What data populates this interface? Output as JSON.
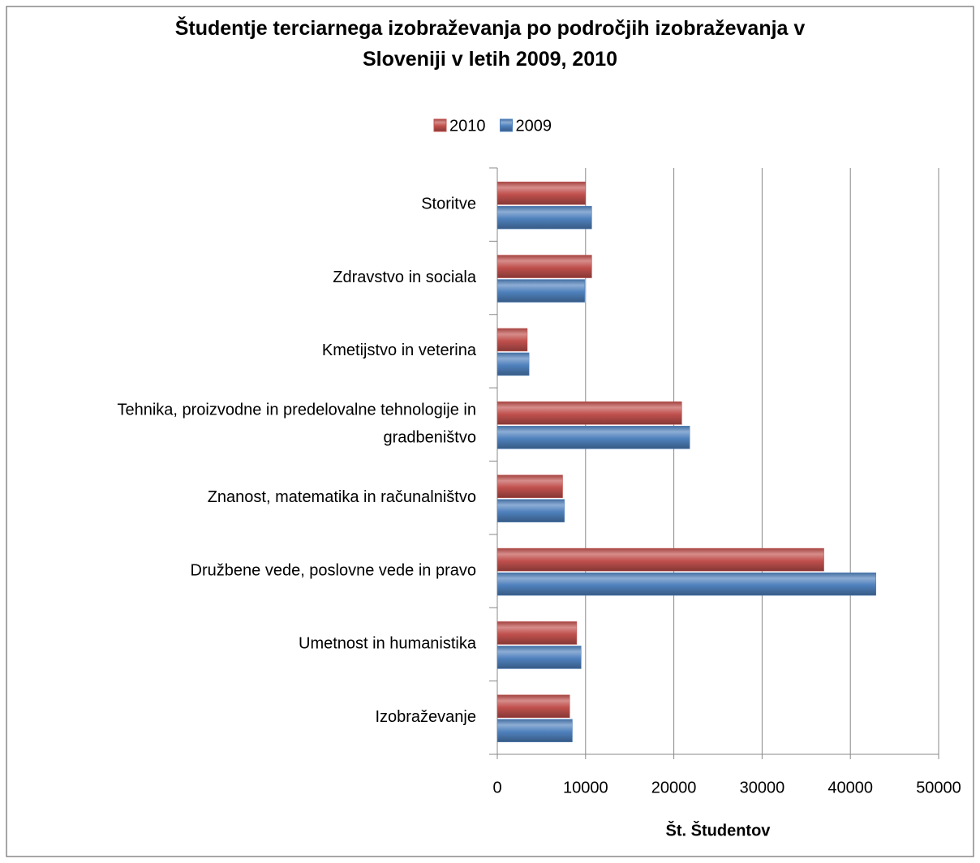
{
  "chart_data": {
    "type": "barh",
    "title": "Študentje terciarnega izobraževanja po področjih izobraževanja v Sloveniji v letih 2009, 2010",
    "xlabel": "Št. Študentov",
    "categories": [
      "Storitve",
      "Zdravstvo in sociala",
      "Kmetijstvo in veterina",
      "Tehnika, proizvodne in predelovalne tehnologije in gradbeništvo",
      "Znanost, matematika in računalništvo",
      "Družbene vede, poslovne vede in pravo",
      "Umetnost in humanistika",
      "Izobraževanje"
    ],
    "series": [
      {
        "name": "2010",
        "color": "#c0504d",
        "values": [
          10000,
          10700,
          3400,
          20900,
          7400,
          37000,
          9000,
          8200
        ]
      },
      {
        "name": "2009",
        "color": "#4f81bd",
        "values": [
          10700,
          9900,
          3600,
          21800,
          7600,
          42900,
          9500,
          8500
        ]
      }
    ],
    "xlim": [
      0,
      50000
    ],
    "xticks": [
      0,
      10000,
      20000,
      30000,
      40000,
      50000
    ],
    "grid": true,
    "legend": "top"
  }
}
